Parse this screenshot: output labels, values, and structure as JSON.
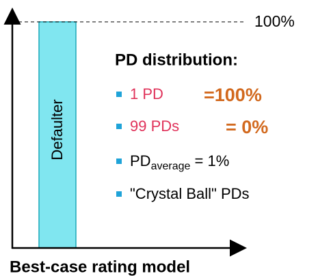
{
  "bar_label": "Defaulter",
  "reference_label": "100%",
  "heading": "PD distribution:",
  "items": [
    {
      "text": "1 PD",
      "result": "=100%"
    },
    {
      "text": "99 PDs",
      "result": "= 0%"
    },
    {
      "text": "PD",
      "subscript": "average",
      "rest": " = 1%"
    },
    {
      "text": "\"Crystal Ball\" PDs"
    }
  ],
  "caption": "Best-case rating model"
}
